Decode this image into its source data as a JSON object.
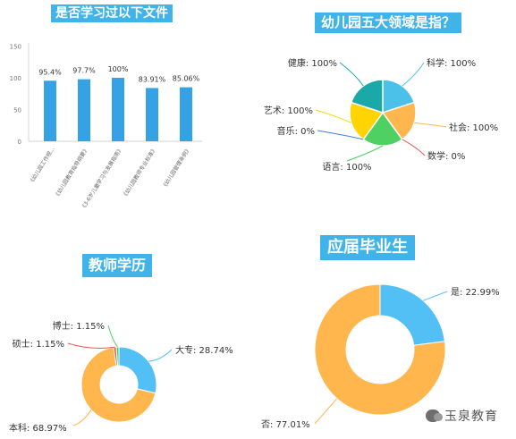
{
  "chart_data": [
    {
      "type": "bar",
      "title": "是否学习过以下文件",
      "categories": [
        "《幼儿园工作规...",
        "《幼儿园教育指导纲要》",
        "《3-6岁儿童学习与发展指南》",
        "《幼儿园教师专业标准》",
        "《幼儿园管理条例》"
      ],
      "values": [
        95.4,
        97.7,
        100,
        83.91,
        85.06
      ],
      "value_labels": [
        "95.4%",
        "97.7%",
        "100%",
        "83.91%",
        "85.06%"
      ],
      "ylim": [
        0,
        150
      ],
      "yticks": [
        "0",
        "50",
        "100",
        "150"
      ],
      "color": "#36a2e6",
      "grid": false
    },
    {
      "type": "pie",
      "title": "幼儿园五大领域是指？",
      "slices": [
        {
          "label": "科学",
          "value": 100,
          "text": "科学: 100%",
          "color": "#4bc0e8"
        },
        {
          "label": "社会",
          "value": 100,
          "text": "社会: 100%",
          "color": "#ffb64d"
        },
        {
          "label": "数学",
          "value": 0,
          "text": "数学: 0%",
          "color": "#e35a5a"
        },
        {
          "label": "语言",
          "value": 100,
          "text": "语言: 100%",
          "color": "#4fd062"
        },
        {
          "label": "音乐",
          "value": 0,
          "text": "音乐: 0%",
          "color": "#3b7fd4"
        },
        {
          "label": "艺术",
          "value": 100,
          "text": "艺术: 100%",
          "color": "#ffd400"
        },
        {
          "label": "健康",
          "value": 100,
          "text": "健康: 100%",
          "color": "#1aa9a8"
        }
      ]
    },
    {
      "type": "pie",
      "title": "教师学历",
      "donut": true,
      "slices": [
        {
          "label": "大专",
          "value": 28.74,
          "text": "大专: 28.74%",
          "color": "#52c0f5"
        },
        {
          "label": "本科",
          "value": 68.97,
          "text": "本科: 68.97%",
          "color": "#ffb64d"
        },
        {
          "label": "硕士",
          "value": 1.15,
          "text": "硕士: 1.15%",
          "color": "#e35a5a"
        },
        {
          "label": "博士",
          "value": 1.15,
          "text": "博士: 1.15%",
          "color": "#4fd062"
        }
      ]
    },
    {
      "type": "pie",
      "title": "应届毕业生",
      "donut": true,
      "slices": [
        {
          "label": "是",
          "value": 22.99,
          "text": "是: 22.99%",
          "color": "#52c0f5"
        },
        {
          "label": "否",
          "value": 77.01,
          "text": "否: 77.01%",
          "color": "#ffb64d"
        }
      ]
    }
  ],
  "watermark": {
    "text": "玉泉教育",
    "icon": "wechat-icon"
  }
}
